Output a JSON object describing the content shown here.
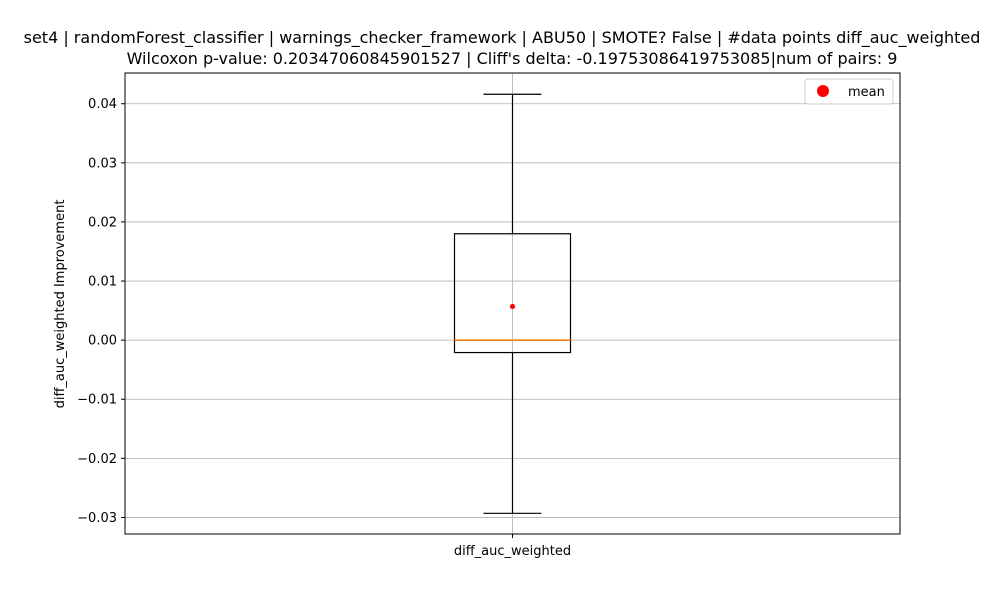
{
  "chart_data": {
    "type": "box",
    "title_line1": "set4 | randomForest_classifier | warnings_checker_framework | ABU50 | SMOTE? False | #data points diff_auc_weighted",
    "title_line2": "Wilcoxon p-value: 0.20347060845901527 | Cliff's delta: -0.19753086419753085|num of pairs: 9",
    "ylabel": "diff_auc_weighted Improvement",
    "category": "diff_auc_weighted",
    "legend": {
      "label": "mean",
      "placement": "top-right"
    },
    "ylim": [
      -0.0328,
      0.0452
    ],
    "yticks": [
      -0.03,
      -0.02,
      -0.01,
      0.0,
      0.01,
      0.02,
      0.03,
      0.04
    ],
    "ytick_labels": [
      "−0.03",
      "−0.02",
      "−0.01",
      "0.00",
      "0.01",
      "0.02",
      "0.03",
      "0.04"
    ],
    "grid": true,
    "box": {
      "whisker_low": -0.0293,
      "q1": -0.0021,
      "median": 0.0,
      "q3": 0.018,
      "whisker_high": 0.0416,
      "mean": 0.0057
    },
    "colors": {
      "box": "#000000",
      "median": "#ff7f0e",
      "mean": "#ff0000",
      "grid": "#b0b0b0"
    }
  }
}
